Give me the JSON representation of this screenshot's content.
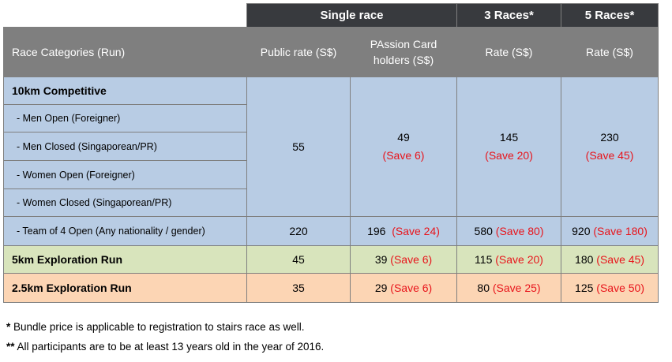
{
  "header": {
    "groups": [
      "Single race",
      "3 Races*",
      "5 Races*"
    ],
    "columns": [
      "Race Categories (Run)",
      "Public rate (S$)",
      "PAssion Card holders (S$)",
      "Rate (S$)",
      "Rate (S$)"
    ]
  },
  "competitive": {
    "title": "10km Competitive",
    "subcategories": [
      "- Men Open (Foreigner)",
      "- Men Closed (Singaporean/PR)",
      "- Women Open (Foreigner)",
      "- Women Closed (Singaporean/PR)"
    ],
    "public_rate": "55",
    "passion_rate": "49",
    "passion_save": "(Save 6)",
    "races3_rate": "145",
    "races3_save": "(Save 20)",
    "races5_rate": "230",
    "races5_save": "(Save 45)"
  },
  "team": {
    "label": "- Team of 4 Open (Any nationality / gender)",
    "public_rate": "220",
    "passion_rate": "196",
    "passion_save": "(Save 24)",
    "races3_rate": "580",
    "races3_save": "(Save 80)",
    "races5_rate": "920",
    "races5_save": "(Save 180)"
  },
  "five_km": {
    "label": "5km Exploration Run",
    "public_rate": "45",
    "passion_rate": "39",
    "passion_save": "(Save 6)",
    "races3_rate": "115",
    "races3_save": "(Save 20)",
    "races5_rate": "180",
    "races5_save": "(Save 45)"
  },
  "two_half_km": {
    "label": "2.5km Exploration Run",
    "public_rate": "35",
    "passion_rate": "29",
    "passion_save": "(Save 6)",
    "races3_rate": "80",
    "races3_save": "(Save 25)",
    "races5_rate": "125",
    "races5_save": "(Save 50)"
  },
  "notes": {
    "note1_mark": "*",
    "note1_text": "Bundle price is applicable to registration to stairs race as well.",
    "note2_mark": "**",
    "note2_text": "All participants are to be at least 13 years old in the year of 2016."
  },
  "colors": {
    "header_dark": "#383a3e",
    "header_grey": "#7f7f7f",
    "blue_row": "#b8cce4",
    "green_row": "#d8e4bc",
    "orange_row": "#fcd5b4",
    "save_red": "#e8141b"
  }
}
